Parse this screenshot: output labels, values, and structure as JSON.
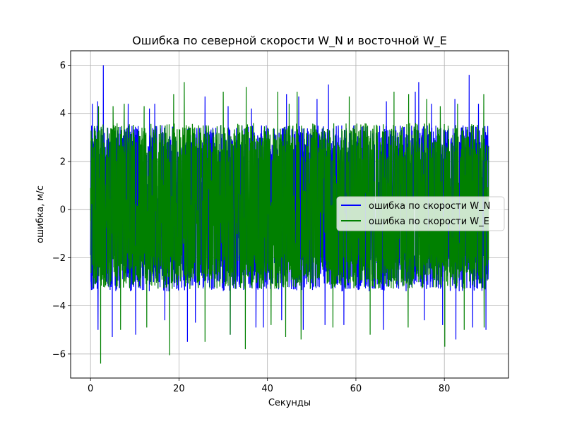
{
  "chart_data": {
    "type": "line",
    "title": "Ошибка по северной скорости W_N и восточной W_E",
    "xlabel": "Секунды",
    "ylabel": "ошибка, м/с",
    "xlim": [
      -4.5,
      94.5
    ],
    "ylim": [
      -7.0,
      6.6
    ],
    "xticks": [
      0,
      20,
      40,
      60,
      80
    ],
    "yticks": [
      6,
      4,
      2,
      0,
      -2,
      -4,
      -6
    ],
    "ytick_labels": [
      "6",
      "4",
      "2",
      "0",
      "−2",
      "−4",
      "−6"
    ],
    "grid": true,
    "legend_position": "center-right",
    "series": [
      {
        "name": "ошибка по скорости W_N",
        "color": "#0000ff",
        "x_range": [
          0,
          90
        ],
        "band": [
          -3.4,
          3.5
        ],
        "max_peak": {
          "x": 2.9,
          "y": 6.0
        },
        "peaks_up": [
          [
            0.4,
            4.4
          ],
          [
            1.6,
            4.5
          ],
          [
            8.5,
            4.4
          ],
          [
            13.3,
            4.2
          ],
          [
            14.5,
            4.4
          ],
          [
            25.9,
            4.7
          ],
          [
            31.1,
            4.3
          ],
          [
            36.4,
            4.2
          ],
          [
            44.3,
            4.8
          ],
          [
            47.1,
            4.7
          ],
          [
            51.2,
            4.6
          ],
          [
            53.8,
            5.2
          ],
          [
            66.9,
            4.5
          ],
          [
            73.4,
            4.9
          ],
          [
            74.2,
            5.3
          ],
          [
            77.1,
            4.4
          ],
          [
            82.4,
            4.6
          ],
          [
            85.6,
            5.6
          ],
          [
            87.7,
            4.4
          ]
        ],
        "peaks_down": [
          [
            1.7,
            -5.0
          ],
          [
            4.9,
            -5.3
          ],
          [
            10.2,
            -5.2
          ],
          [
            16.8,
            -4.6
          ],
          [
            21.9,
            -5.5
          ],
          [
            23.7,
            -4.7
          ],
          [
            31.6,
            -5.2
          ],
          [
            37.4,
            -4.9
          ],
          [
            39.1,
            -4.9
          ],
          [
            43.2,
            -4.6
          ],
          [
            48.1,
            -5.0
          ],
          [
            53.0,
            -4.8
          ],
          [
            57.3,
            -4.8
          ],
          [
            66.2,
            -5.0
          ],
          [
            75.5,
            -4.6
          ],
          [
            79.6,
            -4.8
          ],
          [
            82.6,
            -5.4
          ],
          [
            86.4,
            -4.9
          ],
          [
            89.4,
            -5.0
          ]
        ]
      },
      {
        "name": "ошибка по скорости W_E",
        "color": "#008000",
        "x_range": [
          0,
          90
        ],
        "band": [
          -3.3,
          3.6
        ],
        "min_peak": {
          "x": 2.3,
          "y": -6.4
        },
        "peaks_up": [
          [
            1.8,
            4.3
          ],
          [
            5.1,
            4.3
          ],
          [
            7.6,
            4.4
          ],
          [
            12.1,
            4.3
          ],
          [
            18.8,
            4.8
          ],
          [
            21.2,
            5.3
          ],
          [
            30.0,
            4.9
          ],
          [
            35.2,
            5.1
          ],
          [
            42.3,
            4.9
          ],
          [
            44.9,
            4.4
          ],
          [
            46.7,
            4.9
          ],
          [
            58.5,
            4.7
          ],
          [
            68.6,
            4.9
          ],
          [
            71.9,
            4.8
          ],
          [
            76.0,
            4.6
          ],
          [
            79.1,
            4.3
          ],
          [
            83.0,
            4.4
          ],
          [
            88.9,
            4.8
          ]
        ],
        "peaks_down": [
          [
            2.3,
            -6.4
          ],
          [
            6.8,
            -5.0
          ],
          [
            12.7,
            -4.9
          ],
          [
            17.9,
            -6.05
          ],
          [
            25.9,
            -5.5
          ],
          [
            31.6,
            -5.2
          ],
          [
            35.0,
            -5.8
          ],
          [
            40.8,
            -4.8
          ],
          [
            44.1,
            -5.3
          ],
          [
            47.6,
            -5.4
          ],
          [
            54.8,
            -4.9
          ],
          [
            63.2,
            -5.2
          ],
          [
            71.8,
            -4.9
          ],
          [
            80.1,
            -5.7
          ],
          [
            84.5,
            -5.0
          ],
          [
            89.0,
            -4.9
          ]
        ]
      }
    ]
  }
}
